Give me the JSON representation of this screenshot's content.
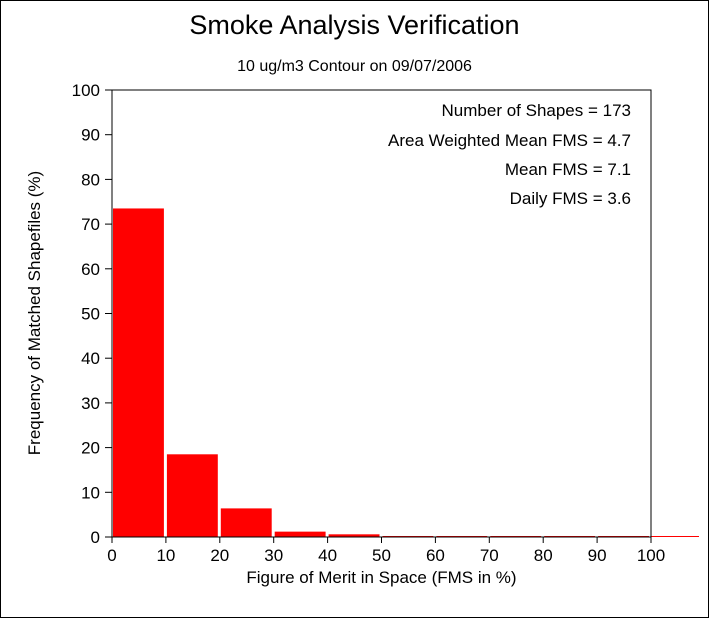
{
  "chart_data": {
    "type": "bar",
    "title": "Smoke Analysis Verification",
    "subtitle": "10 ug/m3 Contour on 09/07/2006",
    "xlabel": "Figure of Merit in Space (FMS in %)",
    "ylabel": "Frequency of Matched Shapefiles (%)",
    "xlim": [
      0,
      100
    ],
    "ylim": [
      0,
      100
    ],
    "xticks": [
      "0",
      "10",
      "20",
      "30",
      "40",
      "50",
      "60",
      "70",
      "80",
      "90",
      "100"
    ],
    "yticks": [
      "0",
      "10",
      "20",
      "30",
      "40",
      "50",
      "60",
      "70",
      "80",
      "90",
      "100"
    ],
    "bins": [
      {
        "start": 0,
        "end": 10,
        "value": 73.5
      },
      {
        "start": 10,
        "end": 20,
        "value": 18.5
      },
      {
        "start": 20,
        "end": 30,
        "value": 6.4
      },
      {
        "start": 30,
        "end": 40,
        "value": 1.2
      },
      {
        "start": 40,
        "end": 50,
        "value": 0.6
      },
      {
        "start": 50,
        "end": 60,
        "value": 0
      },
      {
        "start": 60,
        "end": 70,
        "value": 0
      },
      {
        "start": 70,
        "end": 80,
        "value": 0
      },
      {
        "start": 80,
        "end": 90,
        "value": 0
      },
      {
        "start": 90,
        "end": 100,
        "value": 0
      }
    ],
    "bar_color": "#ff0000",
    "grid": false,
    "annotations": [
      "Number of Shapes = 173",
      "Area Weighted Mean FMS = 4.7",
      "Mean FMS = 7.1",
      "Daily FMS = 3.6"
    ],
    "annotation_placement": "top-right"
  }
}
